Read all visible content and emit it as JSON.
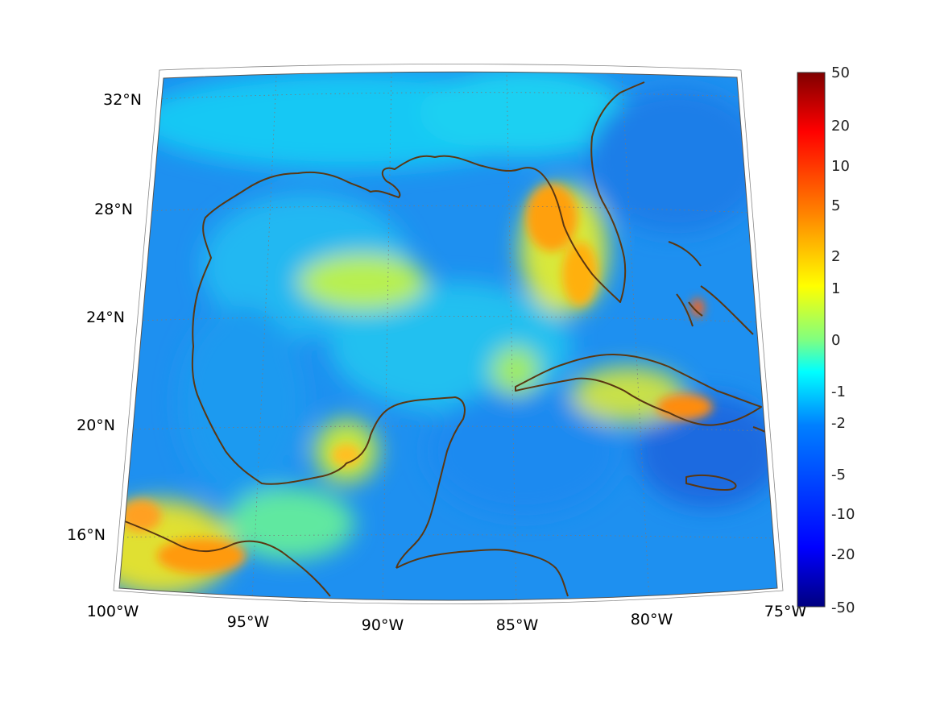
{
  "map": {
    "projection": "conic",
    "region": "Gulf of Mexico and Caribbean",
    "lon_range": [
      -100,
      -75
    ],
    "lat_range": [
      14,
      33
    ],
    "coastline_color": "#5a3712",
    "graticule_style": "dotted"
  },
  "axes": {
    "lat_labels": [
      "32°N",
      "28°N",
      "24°N",
      "20°N",
      "16°N"
    ],
    "lon_labels": [
      "100°W",
      "95°W",
      "90°W",
      "85°W",
      "80°W",
      "75°W"
    ]
  },
  "colorbar": {
    "colormap": "jet",
    "labels": [
      "50",
      "20",
      "10",
      "5",
      "2",
      "1",
      "0",
      "-1",
      "-2",
      "-5",
      "-10",
      "-20",
      "-50"
    ],
    "colors": [
      "#800000",
      "#ff0000",
      "#ff8000",
      "#ffff00",
      "#80ff80",
      "#00ffff",
      "#0080ff",
      "#0000ff",
      "#000080"
    ]
  },
  "field": {
    "background_color": "#1e90f0",
    "warm_regions": [
      "west Florida shelf",
      "southern Mexico",
      "eastern Cuba",
      "Bahamas",
      "central Gulf"
    ]
  }
}
